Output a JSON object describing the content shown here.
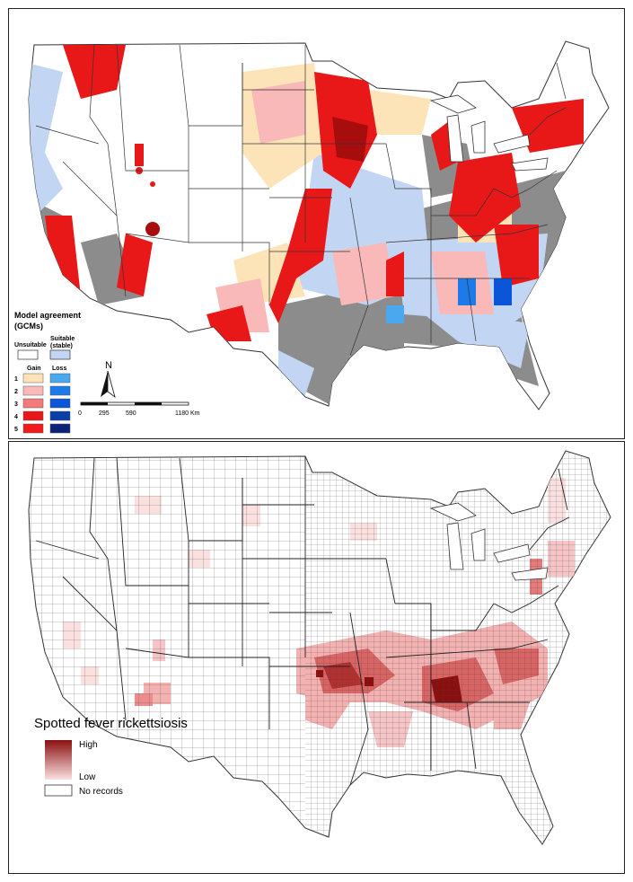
{
  "top_map": {
    "legend": {
      "title_line1": "Model agreement",
      "title_line2": "(GCMs)",
      "unsuitable_label": "Unsuitable",
      "suitable_label_line1": "Suitable",
      "suitable_label_line2": "(stable)",
      "gain_header": "Gain",
      "loss_header": "Loss",
      "levels": [
        "1",
        "2",
        "3",
        "4",
        "5"
      ],
      "gain_colors": [
        "#fde4b8",
        "#f9b9b9",
        "#f47a7a",
        "#e81818",
        "#f21b1b"
      ],
      "loss_colors": [
        "#4aa8ee",
        "#1c7be8",
        "#0b55d8",
        "#0a3fa8",
        "#0b237a"
      ],
      "unsuitable_color": "#ffffff",
      "stable_color": "#c2d5f3",
      "nonhabitat_color": "#8c8c8c"
    },
    "north_arrow_label": "N",
    "scale_bar": {
      "ticks": [
        "0",
        "295",
        "590",
        "1180 Km"
      ]
    }
  },
  "bottom_map": {
    "legend": {
      "title": "Spotted fever rickettsiosis",
      "high_label": "High",
      "low_label": "Low",
      "no_records_label": "No records",
      "high_color": "#8b0f0f",
      "low_color": "#fbe0e0"
    }
  }
}
